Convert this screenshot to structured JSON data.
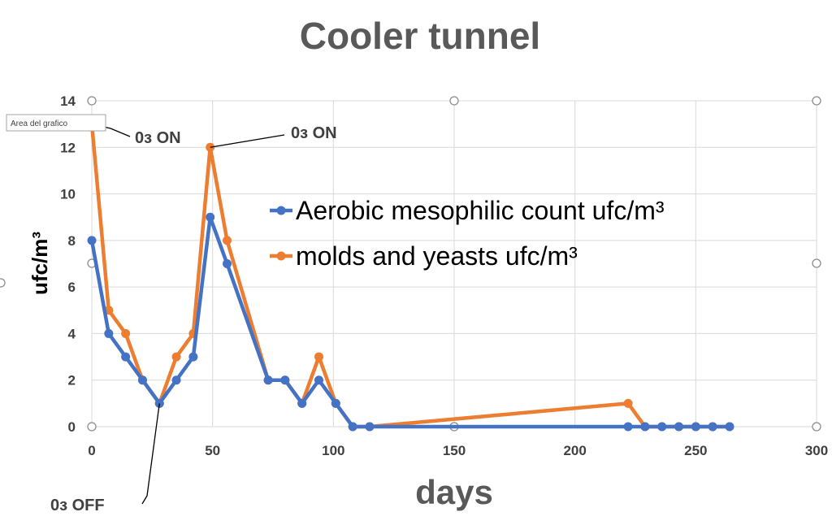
{
  "chart_data": {
    "type": "line",
    "title": "Cooler tunnel",
    "xlabel": "days",
    "ylabel": "ufc/m³",
    "xlim": [
      0,
      300
    ],
    "ylim": [
      0,
      14
    ],
    "x_ticks": [
      0,
      50,
      100,
      150,
      200,
      250,
      300
    ],
    "y_ticks": [
      0,
      2,
      4,
      6,
      8,
      10,
      12,
      14
    ],
    "grid": true,
    "legend_position": "inside-center-right",
    "series": [
      {
        "name": "Aerobic mesophilic count ufc/m³",
        "color": "#4472c4",
        "x": [
          0,
          7,
          14,
          21,
          28,
          35,
          42,
          49,
          56,
          73,
          80,
          87,
          94,
          101,
          108,
          115,
          222,
          229,
          236,
          243,
          250,
          257,
          264
        ],
        "y": [
          8,
          4,
          3,
          2,
          1,
          2,
          3,
          9,
          7,
          2,
          2,
          1,
          2,
          1,
          0,
          0,
          0,
          0,
          0,
          0,
          0,
          0,
          0
        ]
      },
      {
        "name": "molds and yeasts ufc/m³",
        "color": "#ed7d31",
        "x": [
          0,
          7,
          14,
          21,
          28,
          35,
          42,
          49,
          56,
          73,
          80,
          87,
          94,
          101,
          108,
          115,
          222,
          229,
          236,
          243,
          250,
          257,
          264
        ],
        "y": [
          13,
          5,
          4,
          2,
          1,
          3,
          4,
          12,
          8,
          2,
          2,
          1,
          3,
          1,
          0,
          0,
          1,
          0,
          0,
          0,
          0,
          0,
          0
        ]
      }
    ],
    "annotations": [
      {
        "text": "0з ON",
        "x": 0,
        "y": 13
      },
      {
        "text": "0з ON",
        "x": 49,
        "y": 12
      },
      {
        "text": "0з OFF",
        "x": 28,
        "y": 1
      }
    ],
    "tooltip": "Area del grafico"
  }
}
